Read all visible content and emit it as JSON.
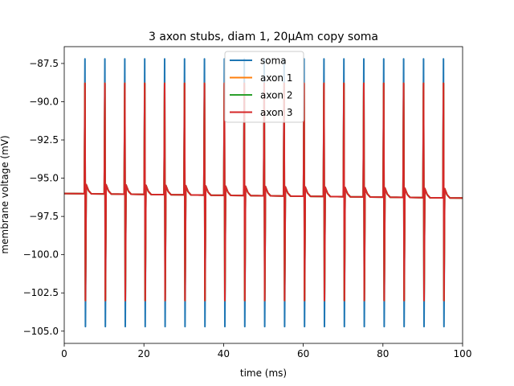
{
  "chart_data": {
    "type": "line",
    "title": "3 axon stubs, diam 1, 20μAm copy soma",
    "xlabel": "time (ms)",
    "ylabel": "membrane voltage (mV)",
    "xlim": [
      0,
      100
    ],
    "ylim": [
      -105.8,
      -86.4
    ],
    "xticks": [
      0,
      20,
      40,
      60,
      80,
      100
    ],
    "xtick_labels": [
      "0",
      "20",
      "40",
      "60",
      "80",
      "100"
    ],
    "yticks": [
      -87.5,
      -90.0,
      -92.5,
      -95.0,
      -97.5,
      -100.0,
      -102.5,
      -105.0
    ],
    "ytick_labels": [
      "−87.5",
      "−90.0",
      "−92.5",
      "−95.0",
      "−97.5",
      "−100.0",
      "−102.5",
      "−105.0"
    ],
    "grid": false,
    "legend": {
      "placement": "top-center"
    },
    "baseline": {
      "start": -96.0,
      "end": -96.3
    },
    "spike_times": [
      5.2,
      10.2,
      15.2,
      20.2,
      25.2,
      30.2,
      35.2,
      40.2,
      45.2,
      50.2,
      55.2,
      60.2,
      65.2,
      70.2,
      75.2,
      80.2,
      85.2,
      90.2,
      95.2
    ],
    "series": [
      {
        "name": "soma",
        "color": "#1f77b4",
        "peak": -87.2,
        "trough": -104.7
      },
      {
        "name": "axon 1",
        "color": "#ff7f0e",
        "peak": -88.8,
        "trough": -103.0
      },
      {
        "name": "axon 2",
        "color": "#2ca02c",
        "peak": -88.8,
        "trough": -103.0
      },
      {
        "name": "axon 3",
        "color": "#d62728",
        "peak": -88.8,
        "trough": -103.0
      }
    ]
  }
}
